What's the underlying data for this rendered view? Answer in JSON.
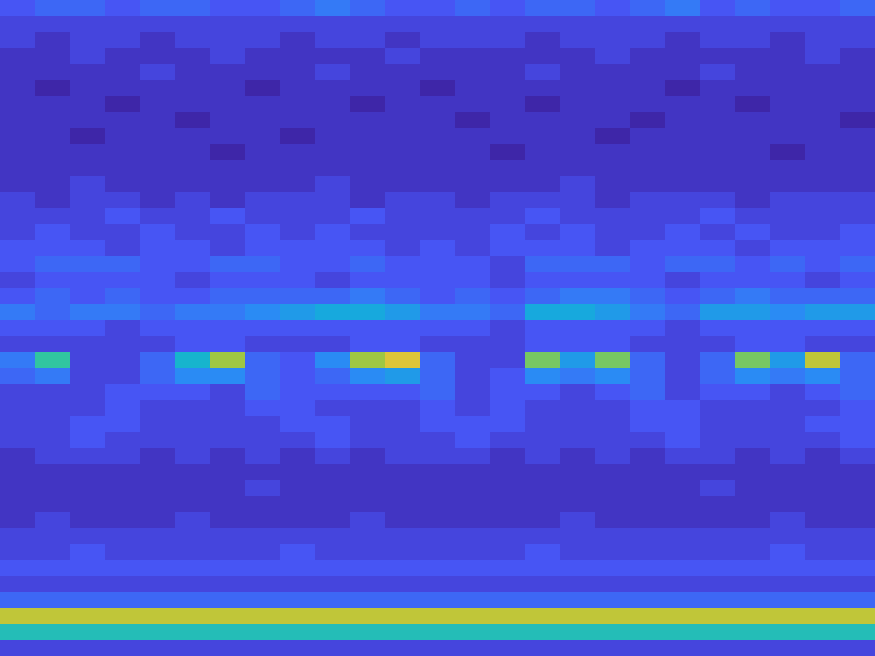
{
  "chart_data": {
    "type": "heatmap",
    "tick_labels": false,
    "zlim": [
      0,
      20
    ],
    "cells": [
      [
        3,
        4,
        4,
        3,
        4,
        4,
        3,
        3,
        4,
        5,
        4,
        3,
        3,
        4,
        3,
        4,
        4,
        3,
        4,
        5,
        3,
        4,
        3,
        3,
        4
      ],
      [
        2,
        2,
        2,
        2,
        2,
        2,
        2,
        2,
        2,
        2,
        2,
        2,
        2,
        2,
        2,
        2,
        2,
        2,
        2,
        2,
        2,
        2,
        2,
        2,
        2
      ],
      [
        2,
        1,
        2,
        2,
        1,
        2,
        2,
        2,
        1,
        2,
        2,
        1,
        2,
        2,
        2,
        1,
        2,
        2,
        2,
        1,
        2,
        2,
        1,
        2,
        2
      ],
      [
        1,
        1,
        2,
        1,
        1,
        1,
        2,
        1,
        1,
        1,
        1,
        2,
        1,
        1,
        1,
        1,
        1,
        2,
        1,
        1,
        1,
        1,
        1,
        2,
        1
      ],
      [
        1,
        1,
        1,
        1,
        2,
        1,
        1,
        1,
        1,
        2,
        1,
        1,
        1,
        1,
        1,
        2,
        1,
        1,
        1,
        1,
        2,
        1,
        1,
        1,
        1
      ],
      [
        1,
        0,
        1,
        1,
        1,
        1,
        1,
        0,
        1,
        1,
        1,
        1,
        0,
        1,
        1,
        1,
        1,
        1,
        1,
        0,
        1,
        1,
        1,
        1,
        1
      ],
      [
        1,
        1,
        1,
        0,
        1,
        1,
        1,
        1,
        1,
        1,
        0,
        1,
        1,
        1,
        1,
        0,
        1,
        1,
        1,
        1,
        1,
        0,
        1,
        1,
        1
      ],
      [
        1,
        1,
        1,
        1,
        1,
        0,
        1,
        1,
        1,
        1,
        1,
        1,
        1,
        0,
        1,
        1,
        1,
        1,
        0,
        1,
        1,
        1,
        1,
        1,
        0
      ],
      [
        1,
        1,
        0,
        1,
        1,
        1,
        1,
        1,
        0,
        1,
        1,
        1,
        1,
        1,
        1,
        1,
        1,
        0,
        1,
        1,
        1,
        1,
        1,
        1,
        1
      ],
      [
        1,
        1,
        1,
        1,
        1,
        1,
        0,
        1,
        1,
        1,
        1,
        1,
        1,
        1,
        0,
        1,
        1,
        1,
        1,
        1,
        1,
        1,
        0,
        1,
        1
      ],
      [
        1,
        1,
        1,
        1,
        1,
        1,
        1,
        1,
        1,
        1,
        1,
        1,
        1,
        1,
        1,
        1,
        1,
        1,
        1,
        1,
        1,
        1,
        1,
        1,
        1
      ],
      [
        1,
        1,
        2,
        1,
        1,
        1,
        1,
        1,
        1,
        2,
        1,
        1,
        1,
        1,
        1,
        1,
        2,
        1,
        1,
        1,
        1,
        1,
        1,
        1,
        1
      ],
      [
        2,
        1,
        2,
        2,
        1,
        2,
        1,
        2,
        2,
        2,
        1,
        2,
        2,
        1,
        2,
        2,
        2,
        1,
        2,
        2,
        2,
        1,
        2,
        2,
        2
      ],
      [
        2,
        2,
        2,
        3,
        2,
        2,
        3,
        2,
        2,
        2,
        3,
        2,
        2,
        2,
        2,
        3,
        2,
        2,
        2,
        2,
        3,
        2,
        2,
        2,
        2
      ],
      [
        2,
        3,
        2,
        2,
        3,
        2,
        2,
        3,
        2,
        3,
        2,
        2,
        2,
        2,
        3,
        2,
        3,
        2,
        2,
        3,
        2,
        3,
        2,
        2,
        3
      ],
      [
        3,
        3,
        3,
        2,
        3,
        3,
        2,
        3,
        3,
        3,
        3,
        2,
        3,
        2,
        3,
        3,
        3,
        2,
        3,
        3,
        3,
        2,
        3,
        3,
        3
      ],
      [
        3,
        4,
        4,
        4,
        3,
        3,
        4,
        4,
        3,
        3,
        4,
        3,
        3,
        3,
        2,
        4,
        4,
        4,
        3,
        4,
        4,
        3,
        4,
        3,
        4
      ],
      [
        2,
        3,
        3,
        3,
        3,
        2,
        3,
        3,
        3,
        2,
        3,
        3,
        3,
        3,
        2,
        3,
        3,
        3,
        3,
        2,
        3,
        3,
        3,
        2,
        3
      ],
      [
        3,
        4,
        3,
        4,
        3,
        3,
        4,
        4,
        4,
        4,
        5,
        4,
        3,
        4,
        3,
        4,
        5,
        5,
        4,
        3,
        4,
        5,
        4,
        4,
        4
      ],
      [
        5,
        4,
        5,
        5,
        4,
        5,
        5,
        6,
        7,
        8,
        8,
        7,
        5,
        5,
        4,
        8,
        8,
        7,
        5,
        4,
        7,
        7,
        6,
        7,
        7
      ],
      [
        3,
        3,
        3,
        2,
        3,
        3,
        3,
        3,
        3,
        3,
        3,
        3,
        3,
        3,
        2,
        3,
        3,
        3,
        3,
        2,
        3,
        3,
        3,
        3,
        3
      ],
      [
        2,
        2,
        2,
        2,
        2,
        3,
        3,
        2,
        2,
        2,
        3,
        3,
        2,
        2,
        2,
        3,
        3,
        3,
        2,
        2,
        2,
        3,
        3,
        2,
        2
      ],
      [
        5,
        11,
        2,
        2,
        4,
        9,
        14,
        4,
        3,
        6,
        14,
        16,
        4,
        2,
        2,
        13,
        7,
        13,
        4,
        2,
        4,
        13,
        7,
        15,
        4
      ],
      [
        4,
        5,
        2,
        2,
        4,
        6,
        6,
        4,
        3,
        4,
        6,
        7,
        4,
        2,
        3,
        6,
        5,
        6,
        4,
        2,
        4,
        6,
        5,
        6,
        4
      ],
      [
        2,
        2,
        2,
        3,
        3,
        3,
        2,
        4,
        3,
        3,
        3,
        3,
        4,
        2,
        3,
        3,
        2,
        3,
        4,
        2,
        3,
        3,
        2,
        3,
        4
      ],
      [
        2,
        2,
        2,
        3,
        2,
        2,
        2,
        3,
        3,
        2,
        2,
        2,
        3,
        2,
        3,
        2,
        2,
        2,
        3,
        3,
        2,
        2,
        2,
        2,
        3
      ],
      [
        2,
        2,
        3,
        3,
        2,
        2,
        2,
        2,
        3,
        3,
        2,
        2,
        3,
        3,
        3,
        2,
        2,
        2,
        3,
        3,
        2,
        2,
        2,
        3,
        3
      ],
      [
        2,
        2,
        3,
        2,
        2,
        2,
        2,
        2,
        2,
        3,
        2,
        2,
        2,
        3,
        2,
        2,
        2,
        2,
        2,
        3,
        2,
        2,
        2,
        2,
        3
      ],
      [
        1,
        2,
        2,
        2,
        1,
        2,
        1,
        2,
        1,
        2,
        1,
        2,
        2,
        2,
        1,
        2,
        1,
        2,
        1,
        2,
        2,
        1,
        2,
        1,
        2
      ],
      [
        1,
        1,
        1,
        1,
        1,
        1,
        1,
        1,
        1,
        1,
        1,
        1,
        1,
        1,
        1,
        1,
        1,
        1,
        1,
        1,
        1,
        1,
        1,
        1,
        1
      ],
      [
        1,
        1,
        1,
        1,
        1,
        1,
        1,
        2,
        1,
        1,
        1,
        1,
        1,
        1,
        1,
        1,
        1,
        1,
        1,
        1,
        2,
        1,
        1,
        1,
        1
      ],
      [
        1,
        1,
        1,
        1,
        1,
        1,
        1,
        1,
        1,
        1,
        1,
        1,
        1,
        1,
        1,
        1,
        1,
        1,
        1,
        1,
        1,
        1,
        1,
        1,
        1
      ],
      [
        1,
        2,
        1,
        1,
        1,
        2,
        1,
        1,
        1,
        1,
        2,
        1,
        1,
        1,
        1,
        1,
        2,
        1,
        1,
        1,
        1,
        1,
        2,
        1,
        1
      ],
      [
        2,
        2,
        2,
        2,
        2,
        2,
        2,
        2,
        2,
        2,
        2,
        2,
        2,
        2,
        2,
        2,
        2,
        2,
        2,
        2,
        2,
        2,
        2,
        2,
        2
      ],
      [
        2,
        2,
        3,
        2,
        2,
        2,
        2,
        2,
        3,
        2,
        2,
        2,
        2,
        2,
        2,
        3,
        2,
        2,
        2,
        2,
        2,
        2,
        3,
        2,
        2
      ],
      [
        3,
        3,
        3,
        3,
        3,
        3,
        3,
        3,
        3,
        3,
        3,
        3,
        3,
        3,
        3,
        3,
        3,
        3,
        3,
        3,
        3,
        3,
        3,
        3,
        3
      ],
      [
        2,
        2,
        2,
        2,
        2,
        2,
        2,
        2,
        2,
        2,
        2,
        2,
        2,
        2,
        2,
        2,
        2,
        2,
        2,
        2,
        2,
        2,
        2,
        2,
        2
      ],
      [
        4,
        4,
        4,
        4,
        4,
        4,
        4,
        4,
        4,
        4,
        4,
        4,
        4,
        4,
        4,
        4,
        4,
        4,
        4,
        4,
        4,
        4,
        4,
        4,
        4
      ],
      [
        15,
        15,
        15,
        15,
        15,
        15,
        15,
        15,
        15,
        15,
        15,
        15,
        15,
        15,
        15,
        15,
        15,
        15,
        15,
        15,
        15,
        15,
        15,
        15,
        15
      ],
      [
        10,
        10,
        10,
        10,
        10,
        10,
        10,
        10,
        10,
        10,
        10,
        10,
        10,
        10,
        10,
        10,
        10,
        10,
        10,
        10,
        10,
        10,
        10,
        10,
        10
      ],
      [
        2,
        2,
        2,
        2,
        2,
        2,
        2,
        2,
        2,
        2,
        2,
        2,
        2,
        2,
        2,
        2,
        2,
        2,
        2,
        2,
        2,
        2,
        2,
        2,
        2
      ]
    ]
  }
}
